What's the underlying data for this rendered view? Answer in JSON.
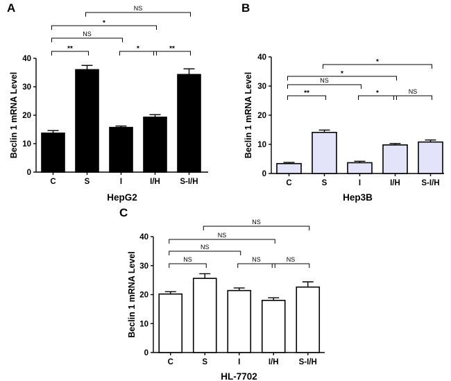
{
  "chart_data": [
    {
      "panel": "A",
      "type": "bar",
      "title": "",
      "xlabel": "HepG2",
      "ylabel": "Beclin 1 mRNA Level",
      "ylim": [
        0,
        40
      ],
      "yticks": [
        0,
        10,
        20,
        30,
        40
      ],
      "categories": [
        "C",
        "S",
        "I",
        "I/H",
        "S-I/H"
      ],
      "values": [
        13.7,
        36.0,
        15.7,
        19.3,
        34.3
      ],
      "errors": [
        0.9,
        1.5,
        0.5,
        0.9,
        2.0
      ],
      "bar_color": "#000000",
      "comparisons": [
        {
          "from": 1,
          "to": 4,
          "label": "NS"
        },
        {
          "from": 0,
          "to": 3,
          "label": "*"
        },
        {
          "from": 0,
          "to": 2,
          "label": "NS"
        },
        {
          "from": 0,
          "to": 1,
          "label": "**"
        },
        {
          "from": 2,
          "to": 3,
          "label": "*"
        },
        {
          "from": 3,
          "to": 4,
          "label": "**"
        }
      ]
    },
    {
      "panel": "B",
      "type": "bar",
      "title": "",
      "xlabel": "Hep3B",
      "ylabel": "Beclin 1 mRNA Level",
      "ylim": [
        0,
        40
      ],
      "yticks": [
        0,
        10,
        20,
        30,
        40
      ],
      "categories": [
        "C",
        "S",
        "I",
        "I/H",
        "S-I/H"
      ],
      "values": [
        3.4,
        14.1,
        3.7,
        9.8,
        10.8
      ],
      "errors": [
        0.4,
        0.8,
        0.5,
        0.5,
        0.7
      ],
      "bar_color": "#e3e3f9",
      "comparisons": [
        {
          "from": 1,
          "to": 4,
          "label": "*"
        },
        {
          "from": 0,
          "to": 3,
          "label": "*"
        },
        {
          "from": 0,
          "to": 2,
          "label": "NS"
        },
        {
          "from": 0,
          "to": 1,
          "label": "**"
        },
        {
          "from": 2,
          "to": 3,
          "label": "*"
        },
        {
          "from": 3,
          "to": 4,
          "label": "NS"
        }
      ]
    },
    {
      "panel": "C",
      "type": "bar",
      "title": "",
      "xlabel": "HL-7702",
      "ylabel": "Beclin 1 mRNA Level",
      "ylim": [
        0,
        40
      ],
      "yticks": [
        0,
        10,
        20,
        30,
        40
      ],
      "categories": [
        "C",
        "S",
        "I",
        "I/H",
        "S-I/H"
      ],
      "values": [
        20.2,
        25.6,
        21.4,
        18.0,
        22.6
      ],
      "errors": [
        0.8,
        1.6,
        0.9,
        0.9,
        1.8
      ],
      "bar_color": "#ffffff",
      "comparisons": [
        {
          "from": 1,
          "to": 4,
          "label": "NS"
        },
        {
          "from": 0,
          "to": 3,
          "label": "NS"
        },
        {
          "from": 0,
          "to": 2,
          "label": "NS"
        },
        {
          "from": 0,
          "to": 1,
          "label": "NS"
        },
        {
          "from": 2,
          "to": 3,
          "label": "NS"
        },
        {
          "from": 3,
          "to": 4,
          "label": "NS"
        }
      ]
    }
  ]
}
